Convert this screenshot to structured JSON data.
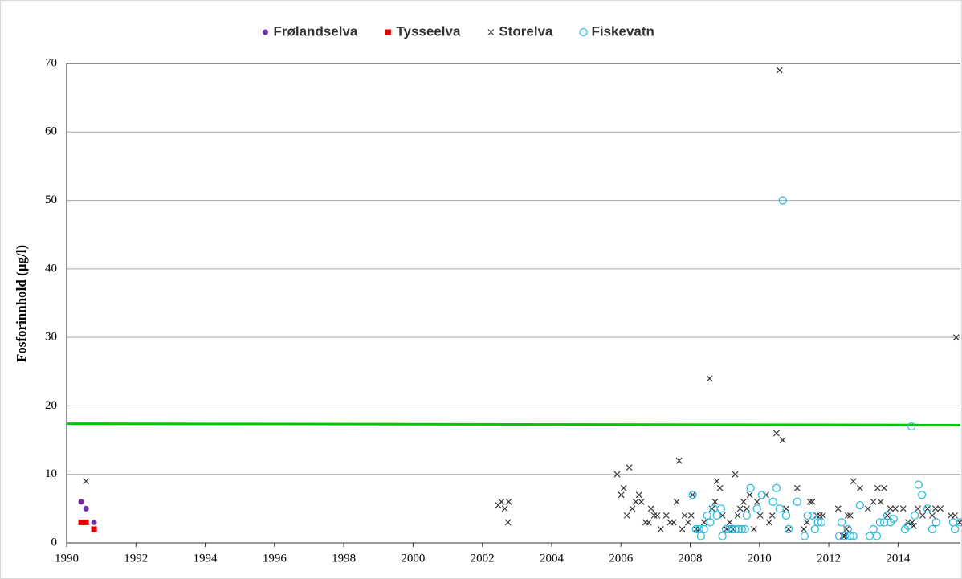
{
  "chart_data": {
    "type": "scatter",
    "y_label": "Fosforinnhold (µg/l)",
    "xlim": [
      1990,
      2015.8
    ],
    "xticks": [
      1990,
      1992,
      1994,
      1996,
      1998,
      2000,
      2002,
      2004,
      2006,
      2008,
      2010,
      2012,
      2014
    ],
    "ylim": [
      0,
      70
    ],
    "yticks": [
      0,
      10,
      20,
      30,
      40,
      50,
      60,
      70
    ],
    "grid": true,
    "legend": "top",
    "trend": {
      "color": "#00c800",
      "x": [
        1990,
        2015.8
      ],
      "values": [
        17.4,
        17.2
      ]
    },
    "series": [
      {
        "name": "Frølandselva",
        "color": "#7030a0",
        "marker": "dot",
        "x": [
          1990.42,
          1990.56,
          1990.79
        ],
        "values": [
          6,
          5,
          3
        ]
      },
      {
        "name": "Tysseelva",
        "color": "#e00000",
        "marker": "square",
        "x": [
          1990.42,
          1990.56,
          1990.79
        ],
        "values": [
          3,
          3,
          2
        ]
      },
      {
        "name": "Storelva",
        "color": "#333333",
        "marker": "cross",
        "x": [
          1990.56,
          2002.46,
          2002.55,
          2002.65,
          2002.74,
          2002.76,
          2005.89,
          2006.01,
          2006.08,
          2006.17,
          2006.24,
          2006.33,
          2006.43,
          2006.52,
          2006.59,
          2006.71,
          2006.8,
          2006.87,
          2006.96,
          2007.05,
          2007.15,
          2007.31,
          2007.42,
          2007.52,
          2007.61,
          2007.68,
          2007.77,
          2007.84,
          2007.94,
          2008.03,
          2008.07,
          2008.17,
          2008.26,
          2008.4,
          2008.56,
          2008.63,
          2008.72,
          2008.77,
          2008.86,
          2008.93,
          2009.05,
          2009.14,
          2009.23,
          2009.3,
          2009.37,
          2009.44,
          2009.54,
          2009.63,
          2009.72,
          2009.84,
          2009.93,
          2010.02,
          2010.19,
          2010.28,
          2010.37,
          2010.49,
          2010.58,
          2010.67,
          2010.77,
          2010.84,
          2011.09,
          2011.28,
          2011.37,
          2011.46,
          2011.53,
          2011.65,
          2011.74,
          2011.83,
          2012.27,
          2012.41,
          2012.46,
          2012.51,
          2012.55,
          2012.62,
          2012.71,
          2012.9,
          2013.13,
          2013.29,
          2013.41,
          2013.5,
          2013.6,
          2013.69,
          2013.78,
          2013.92,
          2014.15,
          2014.29,
          2014.41,
          2014.45,
          2014.57,
          2014.71,
          2014.85,
          2014.99,
          2015.08,
          2015.22,
          2015.52,
          2015.64,
          2015.68,
          2015.78
        ],
        "values": [
          9,
          5.5,
          6,
          5,
          3,
          6,
          10,
          7,
          8,
          4,
          11,
          5,
          6,
          7,
          6,
          3,
          3,
          5,
          4,
          4,
          2,
          4,
          3,
          3,
          6,
          12,
          2,
          4,
          3,
          4,
          7,
          2,
          2,
          3,
          24,
          5,
          6,
          9,
          8,
          4,
          2,
          3,
          2,
          10,
          4,
          5,
          6,
          5,
          7,
          2,
          6,
          4,
          7,
          3,
          4,
          16,
          69,
          15,
          5,
          2,
          8,
          2,
          3,
          6,
          6,
          4,
          4,
          4,
          5,
          1,
          1,
          2,
          4,
          4,
          9,
          8,
          5,
          6,
          8,
          6,
          8,
          4,
          5,
          5,
          5,
          3,
          3,
          2.5,
          5,
          4,
          5,
          4,
          5,
          5,
          4,
          4,
          30,
          3
        ]
      },
      {
        "name": "Fiskevatn",
        "color": "#33bbdd",
        "marker": "ring",
        "x": [
          2008.07,
          2008.17,
          2008.26,
          2008.31,
          2008.4,
          2008.49,
          2008.58,
          2008.68,
          2008.77,
          2008.89,
          2008.93,
          2009.03,
          2009.12,
          2009.21,
          2009.3,
          2009.4,
          2009.49,
          2009.58,
          2009.63,
          2009.74,
          2009.93,
          2010.07,
          2010.39,
          2010.49,
          2010.58,
          2010.67,
          2010.77,
          2010.84,
          2011.09,
          2011.3,
          2011.39,
          2011.53,
          2011.6,
          2011.69,
          2011.79,
          2012.3,
          2012.37,
          2012.46,
          2012.55,
          2012.62,
          2012.71,
          2012.9,
          2013.18,
          2013.29,
          2013.39,
          2013.48,
          2013.6,
          2013.69,
          2013.78,
          2013.87,
          2014.2,
          2014.29,
          2014.39,
          2014.48,
          2014.59,
          2014.69,
          2014.85,
          2014.99,
          2015.1,
          2015.59,
          2015.64,
          2015.8
        ],
        "values": [
          7,
          2,
          2,
          1,
          2,
          4,
          3,
          5,
          4,
          5,
          1,
          2,
          2,
          2,
          2,
          2,
          2,
          2,
          4,
          8,
          5,
          7,
          6,
          8,
          5,
          50,
          4,
          2,
          6,
          1,
          4,
          4,
          2,
          3,
          3,
          1,
          3,
          1,
          2,
          1,
          1,
          5.5,
          1,
          2,
          1,
          3,
          3,
          4,
          3,
          3.5,
          2,
          2.5,
          17,
          4,
          8.5,
          7,
          5,
          2,
          3,
          3,
          2,
          3
        ]
      }
    ]
  }
}
